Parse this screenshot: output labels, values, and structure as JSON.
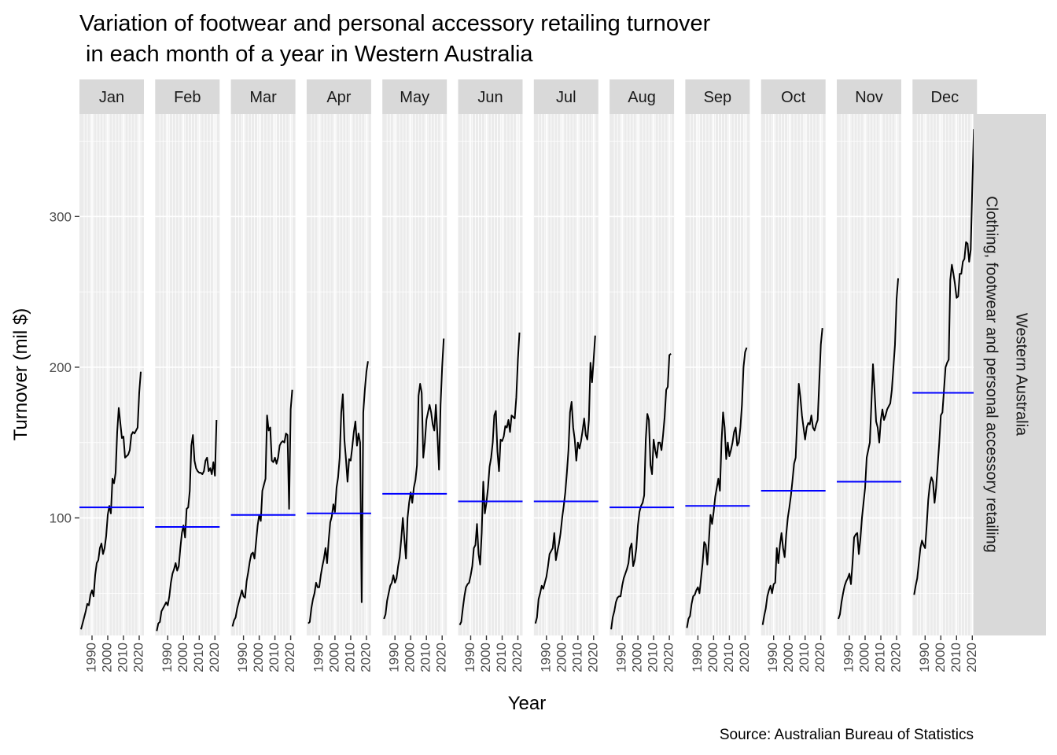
{
  "chart_data": {
    "type": "line",
    "title_lines": [
      "Variation of footwear and personal accessory retailing turnover",
      " in each month of a year in Western Australia"
    ],
    "xlabel": "Year",
    "ylabel": "Turnover (mil $)",
    "caption": "Source: Australian Bureau of Statistics",
    "facet_row_label": "Western Australia",
    "facet_row_label_2": "Clothing, footwear and personal accessory retailing",
    "x_ticks": [
      1990,
      2000,
      2010,
      2020
    ],
    "y_ticks": [
      100,
      200,
      300
    ],
    "xlim": [
      1982,
      2023
    ],
    "ylim": [
      22,
      368
    ],
    "colors": {
      "line": "#000000",
      "mean": "#0000ff",
      "panel": "#ebebeb",
      "grid": "#ffffff",
      "strip": "#d9d9d9"
    },
    "panels": [
      {
        "month": "Jan",
        "mean": 107,
        "years": [
          1983,
          1984,
          1985,
          1986,
          1987,
          1988,
          1989,
          1990,
          1991,
          1992,
          1993,
          1994,
          1995,
          1996,
          1997,
          1998,
          1999,
          2000,
          2001,
          2002,
          2003,
          2004,
          2005,
          2006,
          2007,
          2008,
          2009,
          2010,
          2011,
          2012,
          2013,
          2014,
          2015,
          2016,
          2017,
          2018,
          2019,
          2020,
          2021
        ],
        "values": [
          26,
          30,
          34,
          38,
          43,
          42,
          49,
          52,
          48,
          62,
          70,
          72,
          80,
          83,
          76,
          80,
          88,
          102,
          108,
          103,
          126,
          123,
          130,
          157,
          173,
          163,
          153,
          154,
          140,
          141,
          142,
          145,
          155,
          157,
          156,
          158,
          160,
          183,
          197
        ]
      },
      {
        "month": "Feb",
        "mean": 94,
        "years": [
          1983,
          1984,
          1985,
          1986,
          1987,
          1988,
          1989,
          1990,
          1991,
          1992,
          1993,
          1994,
          1995,
          1996,
          1997,
          1998,
          1999,
          2000,
          2001,
          2002,
          2003,
          2004,
          2005,
          2006,
          2007,
          2008,
          2009,
          2010,
          2011,
          2012,
          2013,
          2014,
          2015,
          2016,
          2017,
          2018,
          2019,
          2020,
          2021
        ],
        "values": [
          25,
          30,
          31,
          38,
          40,
          42,
          44,
          42,
          48,
          57,
          63,
          66,
          70,
          65,
          68,
          80,
          90,
          95,
          87,
          106,
          107,
          118,
          148,
          155,
          138,
          133,
          131,
          130,
          130,
          129,
          131,
          138,
          140,
          131,
          133,
          129,
          137,
          128,
          165
        ]
      },
      {
        "month": "Mar",
        "mean": 102,
        "years": [
          1983,
          1984,
          1985,
          1986,
          1987,
          1988,
          1989,
          1990,
          1991,
          1992,
          1993,
          1994,
          1995,
          1996,
          1997,
          1998,
          1999,
          2000,
          2001,
          2002,
          2003,
          2004,
          2005,
          2006,
          2007,
          2008,
          2009,
          2010,
          2011,
          2012,
          2013,
          2014,
          2015,
          2016,
          2017,
          2018,
          2019,
          2020,
          2021
        ],
        "values": [
          28,
          32,
          34,
          40,
          44,
          48,
          52,
          48,
          47,
          58,
          64,
          71,
          76,
          77,
          73,
          84,
          95,
          102,
          98,
          118,
          122,
          126,
          168,
          158,
          160,
          138,
          137,
          140,
          136,
          140,
          148,
          150,
          151,
          150,
          156,
          155,
          106,
          172,
          185
        ]
      },
      {
        "month": "Apr",
        "mean": 103,
        "years": [
          1983,
          1984,
          1985,
          1986,
          1987,
          1988,
          1989,
          1990,
          1991,
          1992,
          1993,
          1994,
          1995,
          1996,
          1997,
          1998,
          1999,
          2000,
          2001,
          2002,
          2003,
          2004,
          2005,
          2006,
          2007,
          2008,
          2009,
          2010,
          2011,
          2012,
          2013,
          2014,
          2015,
          2016,
          2017,
          2018,
          2019,
          2020,
          2021
        ],
        "values": [
          30,
          31,
          40,
          46,
          50,
          57,
          54,
          54,
          62,
          68,
          73,
          80,
          70,
          85,
          97,
          101,
          109,
          104,
          120,
          127,
          140,
          170,
          182,
          152,
          139,
          124,
          139,
          138,
          147,
          157,
          164,
          148,
          156,
          150,
          44,
          170,
          185,
          197,
          204
        ]
      },
      {
        "month": "May",
        "mean": 116,
        "years": [
          1983,
          1984,
          1985,
          1986,
          1987,
          1988,
          1989,
          1990,
          1991,
          1992,
          1993,
          1994,
          1995,
          1996,
          1997,
          1998,
          1999,
          2000,
          2001,
          2002,
          2003,
          2004,
          2005,
          2006,
          2007,
          2008,
          2009,
          2010,
          2011,
          2012,
          2013,
          2014,
          2015,
          2016,
          2017,
          2018,
          2019,
          2020,
          2021
        ],
        "values": [
          33,
          36,
          45,
          50,
          55,
          57,
          62,
          57,
          60,
          68,
          74,
          86,
          100,
          86,
          73,
          100,
          110,
          117,
          110,
          120,
          125,
          135,
          181,
          189,
          183,
          140,
          150,
          165,
          170,
          175,
          170,
          162,
          158,
          175,
          155,
          132,
          175,
          200,
          219
        ]
      },
      {
        "month": "Jun",
        "mean": 111,
        "years": [
          1983,
          1984,
          1985,
          1986,
          1987,
          1988,
          1989,
          1990,
          1991,
          1992,
          1993,
          1994,
          1995,
          1996,
          1997,
          1998,
          1999,
          2000,
          2001,
          2002,
          2003,
          2004,
          2005,
          2006,
          2007,
          2008,
          2009,
          2010,
          2011,
          2012,
          2013,
          2014,
          2015,
          2016,
          2017,
          2018,
          2019,
          2020,
          2021
        ],
        "values": [
          29,
          31,
          40,
          48,
          54,
          56,
          57,
          62,
          68,
          80,
          82,
          96,
          76,
          69,
          90,
          124,
          103,
          110,
          120,
          134,
          140,
          150,
          168,
          171,
          144,
          131,
          152,
          151,
          154,
          161,
          160,
          165,
          157,
          168,
          167,
          166,
          180,
          205,
          223
        ]
      },
      {
        "month": "Jul",
        "mean": 111,
        "years": [
          1983,
          1984,
          1985,
          1986,
          1987,
          1988,
          1989,
          1990,
          1991,
          1992,
          1993,
          1994,
          1995,
          1996,
          1997,
          1998,
          1999,
          2000,
          2001,
          2002,
          2003,
          2004,
          2005,
          2006,
          2007,
          2008,
          2009,
          2010,
          2011,
          2012,
          2013,
          2014,
          2015,
          2016,
          2017,
          2018,
          2019,
          2020,
          2021
        ],
        "values": [
          30,
          34,
          46,
          50,
          55,
          53,
          57,
          61,
          68,
          76,
          78,
          80,
          90,
          72,
          78,
          83,
          90,
          100,
          108,
          117,
          130,
          145,
          170,
          177,
          160,
          152,
          138,
          150,
          146,
          151,
          158,
          166,
          155,
          152,
          165,
          203,
          190,
          205,
          221
        ]
      },
      {
        "month": "Aug",
        "mean": 107,
        "years": [
          1983,
          1984,
          1985,
          1986,
          1987,
          1988,
          1989,
          1990,
          1991,
          1992,
          1993,
          1994,
          1995,
          1996,
          1997,
          1998,
          1999,
          2000,
          2001,
          2002,
          2003,
          2004,
          2005,
          2006,
          2007,
          2008,
          2009,
          2010,
          2011,
          2012,
          2013,
          2014,
          2015,
          2016,
          2017,
          2018,
          2019,
          2020,
          2021
        ],
        "values": [
          26,
          34,
          38,
          44,
          47,
          48,
          48,
          55,
          60,
          63,
          66,
          70,
          80,
          83,
          68,
          72,
          80,
          95,
          104,
          108,
          110,
          115,
          152,
          169,
          165,
          135,
          129,
          152,
          145,
          140,
          150,
          150,
          145,
          155,
          167,
          185,
          187,
          208,
          209
        ]
      },
      {
        "month": "Sep",
        "mean": 108,
        "years": [
          1983,
          1984,
          1985,
          1986,
          1987,
          1988,
          1989,
          1990,
          1991,
          1992,
          1993,
          1994,
          1995,
          1996,
          1997,
          1998,
          1999,
          2000,
          2001,
          2002,
          2003,
          2004,
          2005,
          2006,
          2007,
          2008,
          2009,
          2010,
          2011,
          2012,
          2013,
          2014,
          2015,
          2016,
          2017,
          2018,
          2019,
          2020,
          2021
        ],
        "values": [
          27,
          33,
          35,
          43,
          48,
          49,
          52,
          54,
          50,
          60,
          70,
          84,
          82,
          69,
          85,
          102,
          96,
          104,
          114,
          120,
          126,
          118,
          150,
          170,
          160,
          139,
          150,
          141,
          145,
          150,
          157,
          160,
          148,
          150,
          160,
          175,
          200,
          210,
          213
        ]
      },
      {
        "month": "Oct",
        "mean": 118,
        "years": [
          1983,
          1984,
          1985,
          1986,
          1987,
          1988,
          1989,
          1990,
          1991,
          1992,
          1993,
          1994,
          1995,
          1996,
          1997,
          1998,
          1999,
          2000,
          2001,
          2002,
          2003,
          2004,
          2005,
          2006,
          2007,
          2008,
          2009,
          2010,
          2011,
          2012,
          2013,
          2014,
          2015,
          2016,
          2017,
          2018,
          2019,
          2020,
          2021
        ],
        "values": [
          29,
          35,
          40,
          48,
          52,
          55,
          50,
          56,
          57,
          80,
          70,
          82,
          90,
          80,
          74,
          89,
          100,
          107,
          115,
          125,
          136,
          140,
          165,
          189,
          180,
          168,
          160,
          152,
          160,
          163,
          162,
          168,
          160,
          158,
          162,
          165,
          190,
          215,
          226
        ]
      },
      {
        "month": "Nov",
        "mean": 124,
        "years": [
          1983,
          1984,
          1985,
          1986,
          1987,
          1988,
          1989,
          1990,
          1991,
          1992,
          1993,
          1994,
          1995,
          1996,
          1997,
          1998,
          1999,
          2000,
          2001,
          2002,
          2003,
          2004,
          2005,
          2006,
          2007,
          2008,
          2009,
          2010,
          2011,
          2012,
          2013,
          2014,
          2015,
          2016,
          2017,
          2018,
          2019,
          2020,
          2021
        ],
        "values": [
          33,
          36,
          44,
          50,
          55,
          58,
          60,
          63,
          56,
          70,
          87,
          89,
          90,
          76,
          86,
          100,
          110,
          120,
          140,
          145,
          150,
          176,
          202,
          185,
          164,
          160,
          150,
          165,
          172,
          165,
          168,
          172,
          174,
          176,
          185,
          200,
          215,
          245,
          259
        ]
      },
      {
        "month": "Dec",
        "mean": 183,
        "years": [
          1983,
          1984,
          1985,
          1986,
          1987,
          1988,
          1989,
          1990,
          1991,
          1992,
          1993,
          1994,
          1995,
          1996,
          1997,
          1998,
          1999,
          2000,
          2001,
          2002,
          2003,
          2004,
          2005,
          2006,
          2007,
          2008,
          2009,
          2010,
          2011,
          2012,
          2013,
          2014,
          2015,
          2016,
          2017,
          2018,
          2019,
          2020,
          2021
        ],
        "values": [
          49,
          55,
          60,
          70,
          80,
          85,
          82,
          80,
          95,
          112,
          122,
          127,
          124,
          110,
          120,
          135,
          150,
          168,
          170,
          185,
          200,
          203,
          205,
          258,
          268,
          262,
          255,
          246,
          247,
          262,
          262,
          270,
          272,
          283,
          282,
          270,
          278,
          320,
          358
        ]
      }
    ]
  }
}
